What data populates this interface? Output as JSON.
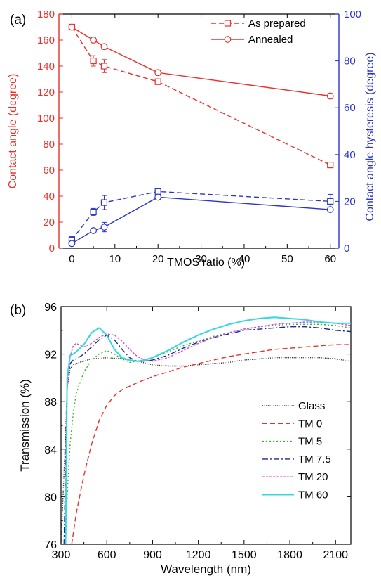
{
  "chart_data": [
    {
      "panel_label": "(a)",
      "type": "line",
      "xlabel": "TMOS ratio (%)",
      "ylabel": "Contact angle (degree)",
      "y2label": "Contact angle hysteresis (degree)",
      "xlim": [
        -3,
        62
      ],
      "ylim": [
        0,
        180
      ],
      "y2lim": [
        0,
        100
      ],
      "xticks": [
        0,
        10,
        20,
        30,
        40,
        50,
        60
      ],
      "yticks": [
        0,
        20,
        40,
        60,
        80,
        100,
        120,
        140,
        160,
        180
      ],
      "y2ticks": [
        0,
        20,
        40,
        60,
        80,
        100
      ],
      "left_axis_color": "#e8312b",
      "right_axis_color": "#2b35c9",
      "legend_position": "top-right",
      "x": [
        0,
        5,
        7.5,
        20,
        60
      ],
      "series": [
        {
          "name": "As prepared",
          "axis": "left",
          "style": "dashed",
          "marker": "square",
          "color": "#e8312b",
          "values": [
            170,
            144,
            140,
            128,
            64
          ],
          "errors": [
            2,
            4,
            5,
            2,
            2
          ]
        },
        {
          "name": "Annealed",
          "axis": "left",
          "style": "solid",
          "marker": "circle",
          "color": "#e8312b",
          "values": [
            170,
            160,
            155,
            135,
            117
          ],
          "errors": [
            2,
            2,
            2,
            2,
            2
          ]
        },
        {
          "name": "",
          "axis": "right",
          "style": "dashed",
          "marker": "square",
          "color": "#2b35c9",
          "values": [
            3.5,
            15.5,
            19.5,
            24.2,
            20
          ],
          "errors": [
            1.5,
            1.5,
            3,
            1,
            3
          ]
        },
        {
          "name": "",
          "axis": "right",
          "style": "solid",
          "marker": "circle",
          "color": "#2b35c9",
          "values": [
            2,
            7.5,
            9,
            21.8,
            16.5
          ],
          "errors": [
            1,
            1,
            2,
            1,
            1
          ]
        }
      ]
    },
    {
      "panel_label": "(b)",
      "type": "line",
      "xlabel": "Wavelength (nm)",
      "ylabel": "Transmission (%)",
      "xlim": [
        300,
        2200
      ],
      "ylim": [
        76,
        96
      ],
      "xticks": [
        300,
        600,
        900,
        1200,
        1500,
        1800,
        2100
      ],
      "yticks": [
        76,
        80,
        84,
        88,
        92,
        96
      ],
      "legend_position": "bottom-right",
      "series": [
        {
          "name": "Glass",
          "style": "dotted-fine",
          "color": "#222222",
          "x": [
            300,
            320,
            340,
            360,
            380,
            420,
            500,
            600,
            700,
            800,
            900,
            1000,
            1100,
            1200,
            1300,
            1400,
            1500,
            1600,
            1700,
            1800,
            1900,
            2000,
            2100,
            2200
          ],
          "y": [
            76,
            82,
            89,
            90.8,
            91.1,
            91.3,
            91.6,
            91.7,
            91.6,
            91.4,
            91.1,
            91.0,
            91.0,
            91.1,
            91.2,
            91.3,
            91.5,
            91.6,
            91.7,
            91.7,
            91.7,
            91.7,
            91.6,
            91.4
          ]
        },
        {
          "name": "TM 0",
          "style": "dashed",
          "color": "#e8312b",
          "x": [
            370,
            400,
            450,
            500,
            550,
            600,
            650,
            700,
            800,
            900,
            1000,
            1100,
            1200,
            1300,
            1400,
            1500,
            1600,
            1700,
            1800,
            1900,
            2000,
            2100,
            2200
          ],
          "y": [
            76,
            78.6,
            81.8,
            84.4,
            86.4,
            87.7,
            88.5,
            89.0,
            89.6,
            90.1,
            90.5,
            90.9,
            91.2,
            91.5,
            91.8,
            92.0,
            92.2,
            92.4,
            92.5,
            92.6,
            92.7,
            92.8,
            92.8
          ]
        },
        {
          "name": "TM 5",
          "style": "dotted",
          "color": "#2eb82e",
          "x": [
            330,
            340,
            360,
            380,
            400,
            450,
            500,
            550,
            600,
            650,
            700,
            750,
            800,
            900,
            1000,
            1100,
            1200,
            1300,
            1400,
            1500,
            1600,
            1700,
            1800,
            1900,
            2000,
            2100,
            2200
          ],
          "y": [
            76,
            80,
            84.5,
            87,
            88.7,
            90.5,
            91.5,
            92.0,
            92.3,
            92.0,
            91.6,
            91.3,
            91.4,
            91.7,
            92.2,
            92.7,
            93.1,
            93.5,
            93.8,
            94.1,
            94.3,
            94.4,
            94.5,
            94.5,
            94.5,
            94.4,
            94.2
          ]
        },
        {
          "name": "TM 7.5",
          "style": "dashdot",
          "color": "#1a2a8c",
          "x": [
            320,
            340,
            360,
            380,
            400,
            450,
            500,
            550,
            600,
            650,
            700,
            750,
            800,
            850,
            900,
            1000,
            1100,
            1200,
            1300,
            1400,
            1500,
            1600,
            1700,
            1800,
            1900,
            2000,
            2100,
            2200
          ],
          "y": [
            76,
            89.5,
            91.2,
            91.5,
            91.6,
            92.0,
            92.6,
            93.2,
            93.6,
            93.2,
            92.4,
            91.7,
            91.4,
            91.4,
            91.5,
            91.9,
            92.5,
            93.0,
            93.4,
            93.7,
            94.0,
            94.1,
            94.2,
            94.3,
            94.3,
            94.2,
            94.0,
            93.9
          ]
        },
        {
          "name": "TM 20",
          "style": "dashed-fine",
          "color": "#d34ad3",
          "x": [
            325,
            340,
            360,
            380,
            400,
            450,
            500,
            550,
            600,
            650,
            700,
            750,
            800,
            850,
            900,
            1000,
            1100,
            1200,
            1300,
            1400,
            1500,
            1600,
            1700,
            1800,
            1900,
            2000,
            2100,
            2200
          ],
          "y": [
            76,
            89,
            91.8,
            92.7,
            92.9,
            92.6,
            92.9,
            93.4,
            93.7,
            93.6,
            93.1,
            92.4,
            91.8,
            91.5,
            91.4,
            91.7,
            92.3,
            92.9,
            93.4,
            93.8,
            94.1,
            94.3,
            94.5,
            94.6,
            94.7,
            94.7,
            94.6,
            94.4
          ]
        },
        {
          "name": "TM 60",
          "style": "solid",
          "color": "#35d8e0",
          "x": [
            330,
            340,
            360,
            380,
            400,
            450,
            500,
            550,
            600,
            650,
            700,
            750,
            800,
            850,
            900,
            1000,
            1100,
            1200,
            1300,
            1400,
            1500,
            1600,
            1700,
            1800,
            1900,
            2000,
            2100,
            2200
          ],
          "y": [
            76,
            90,
            91.9,
            92.0,
            92.2,
            92.8,
            93.8,
            94.2,
            93.6,
            92.4,
            91.7,
            91.5,
            91.4,
            91.5,
            91.7,
            92.3,
            93.0,
            93.6,
            94.1,
            94.5,
            94.8,
            95.0,
            95.1,
            95.0,
            94.9,
            94.7,
            94.6,
            94.6
          ]
        }
      ]
    }
  ]
}
